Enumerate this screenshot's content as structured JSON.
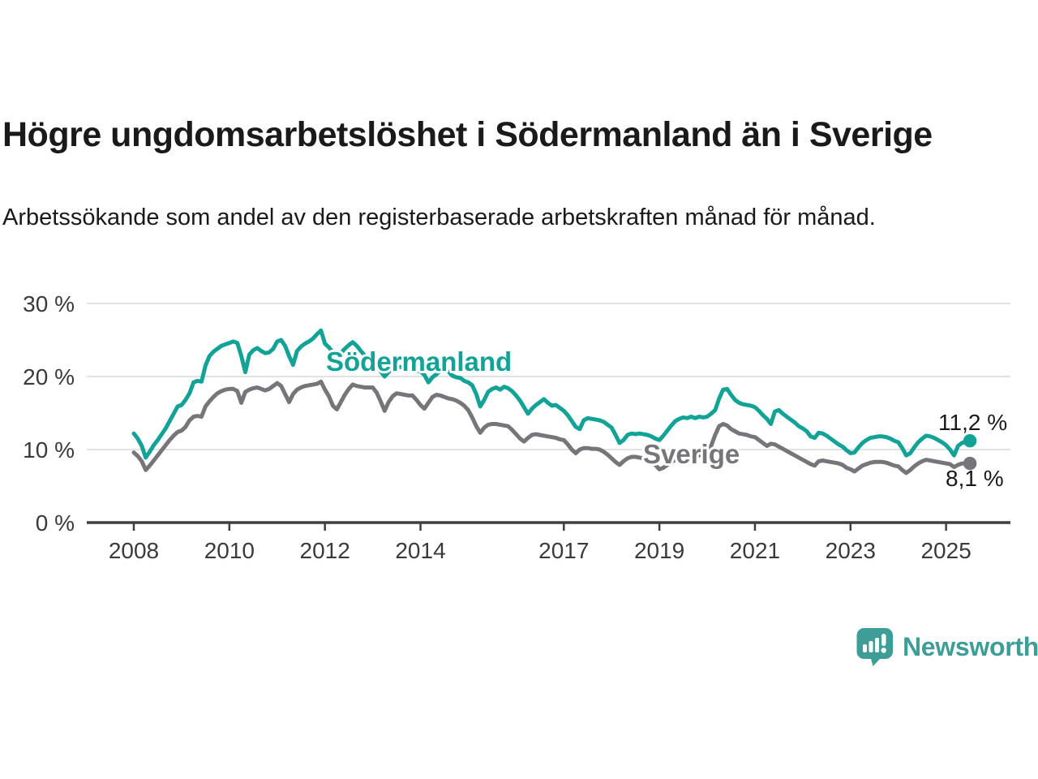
{
  "header": {
    "title": "Högre ungdomsarbetslöshet i Södermanland än i Sverige",
    "subtitle": "Arbetssökande som andel av den registerbaserade arbetskraften månad för månad."
  },
  "footer": {
    "brand": "Newsworthy",
    "brand_color": "#3f9d98",
    "logo_icon": "newsworthy-speech-bubble-bar-chart-icon"
  },
  "chart_data": {
    "type": "line",
    "title": "Högre ungdomsarbetslöshet i Södermanland än i Sverige",
    "xlabel": "",
    "ylabel": "",
    "grid": "horizontal",
    "legend_position": "inline-labels",
    "x_start_year": 2008,
    "points_per_year": 12,
    "xlim": [
      2008,
      2025.6
    ],
    "ylim": [
      0,
      30
    ],
    "y_ticks": [
      {
        "value": 0,
        "label": "0 %"
      },
      {
        "value": 10,
        "label": "10 %"
      },
      {
        "value": 20,
        "label": "20 %"
      },
      {
        "value": 30,
        "label": "30 %"
      }
    ],
    "x_ticks": [
      2008,
      2010,
      2012,
      2014,
      2017,
      2019,
      2021,
      2023,
      2025
    ],
    "colors": {
      "grid": "#d9d9d9",
      "axis": "#3f3f3f",
      "tick_text": "#3a3a3a",
      "value_label_text": "#1a1a1a"
    },
    "series": [
      {
        "name": "Sverige",
        "color": "#76767a",
        "end_label": "8,1 %",
        "values": [
          9.6,
          9.1,
          8.4,
          7.2,
          7.8,
          8.5,
          9.2,
          9.9,
          10.6,
          11.3,
          11.9,
          12.4,
          12.6,
          13.1,
          14.0,
          14.5,
          14.6,
          14.5,
          15.9,
          16.6,
          17.2,
          17.7,
          18.0,
          18.2,
          18.3,
          18.3,
          18.0,
          16.4,
          17.9,
          18.2,
          18.4,
          18.5,
          18.3,
          18.1,
          18.3,
          18.7,
          19.1,
          18.7,
          17.6,
          16.5,
          17.6,
          18.2,
          18.5,
          18.7,
          18.8,
          18.9,
          19.0,
          19.3,
          18.2,
          17.3,
          16.0,
          15.5,
          16.5,
          17.5,
          18.3,
          18.9,
          18.7,
          18.6,
          18.5,
          18.5,
          18.5,
          17.8,
          16.6,
          15.3,
          16.5,
          17.3,
          17.7,
          17.6,
          17.5,
          17.4,
          17.4,
          16.8,
          16.1,
          15.6,
          16.4,
          17.2,
          17.5,
          17.4,
          17.2,
          17.0,
          16.9,
          16.7,
          16.4,
          16.0,
          15.4,
          14.4,
          13.2,
          12.3,
          13.0,
          13.4,
          13.5,
          13.5,
          13.4,
          13.3,
          13.2,
          12.7,
          12.1,
          11.5,
          11.1,
          11.6,
          12.0,
          12.1,
          12.0,
          11.9,
          11.8,
          11.7,
          11.6,
          11.4,
          11.3,
          10.7,
          10.0,
          9.5,
          10.0,
          10.2,
          10.2,
          10.1,
          10.1,
          10.0,
          9.7,
          9.3,
          8.8,
          8.3,
          7.9,
          8.4,
          8.8,
          9.0,
          9.0,
          8.9,
          8.8,
          8.6,
          8.3,
          7.9,
          7.3,
          7.5,
          7.9,
          8.3,
          8.6,
          8.8,
          9.0,
          9.0,
          9.1,
          9.1,
          9.2,
          9.3,
          9.6,
          10.5,
          12.0,
          13.2,
          13.5,
          13.3,
          12.8,
          12.5,
          12.2,
          12.1,
          12.0,
          11.8,
          11.7,
          11.3,
          10.9,
          10.5,
          10.8,
          10.7,
          10.4,
          10.1,
          9.8,
          9.5,
          9.2,
          8.9,
          8.6,
          8.3,
          8.0,
          7.8,
          8.4,
          8.5,
          8.4,
          8.3,
          8.2,
          8.1,
          7.9,
          7.5,
          7.3,
          7.0,
          7.4,
          7.8,
          8.0,
          8.2,
          8.3,
          8.3,
          8.3,
          8.2,
          8.0,
          7.8,
          7.7,
          7.2,
          6.8,
          7.2,
          7.7,
          8.1,
          8.4,
          8.6,
          8.5,
          8.4,
          8.3,
          8.2,
          8.1,
          8.0,
          7.6,
          7.9,
          8.1,
          8.1,
          8.1
        ]
      },
      {
        "name": "Södermanland",
        "color": "#12a296",
        "end_label": "11,2 %",
        "values": [
          12.2,
          11.5,
          10.5,
          8.9,
          9.7,
          10.6,
          11.3,
          12.1,
          12.9,
          13.9,
          14.9,
          15.9,
          16.1,
          16.8,
          17.7,
          19.2,
          19.4,
          19.3,
          21.5,
          22.8,
          23.4,
          23.8,
          24.2,
          24.4,
          24.6,
          24.8,
          24.6,
          22.8,
          20.6,
          23.0,
          23.6,
          23.9,
          23.5,
          23.2,
          23.3,
          23.8,
          24.8,
          25.0,
          24.2,
          22.8,
          21.6,
          23.5,
          24.1,
          24.5,
          24.8,
          25.2,
          25.8,
          26.3,
          24.5,
          24.0,
          23.3,
          22.7,
          23.2,
          23.8,
          24.3,
          24.7,
          24.2,
          23.5,
          22.9,
          22.4,
          22.0,
          21.4,
          20.7,
          20.0,
          20.6,
          21.2,
          21.4,
          21.3,
          21.2,
          21.1,
          21.0,
          20.8,
          20.7,
          20.2,
          19.2,
          19.9,
          20.3,
          20.8,
          20.8,
          20.7,
          20.1,
          19.9,
          19.8,
          19.4,
          19.2,
          18.8,
          17.6,
          15.9,
          16.8,
          17.9,
          18.3,
          18.5,
          18.2,
          18.6,
          18.4,
          18.0,
          17.4,
          16.7,
          15.8,
          14.9,
          15.6,
          16.1,
          16.5,
          16.9,
          16.4,
          16.0,
          16.1,
          15.7,
          15.3,
          14.7,
          13.9,
          13.1,
          12.8,
          14.0,
          14.3,
          14.2,
          14.1,
          14.0,
          13.8,
          13.4,
          13.0,
          12.0,
          10.9,
          11.3,
          12.0,
          12.2,
          12.1,
          12.2,
          12.1,
          12.0,
          11.8,
          11.5,
          11.3,
          11.9,
          12.6,
          13.3,
          13.9,
          14.2,
          14.4,
          14.3,
          14.5,
          14.3,
          14.5,
          14.4,
          14.5,
          14.9,
          15.4,
          17.0,
          18.2,
          18.3,
          17.5,
          16.8,
          16.4,
          16.2,
          16.1,
          16.0,
          15.8,
          15.3,
          14.7,
          14.2,
          13.5,
          15.2,
          15.4,
          14.9,
          14.5,
          14.1,
          13.7,
          13.2,
          12.9,
          12.5,
          11.8,
          11.6,
          12.3,
          12.2,
          11.9,
          11.5,
          11.1,
          10.7,
          10.4,
          9.9,
          9.5,
          9.6,
          10.3,
          10.9,
          11.3,
          11.6,
          11.7,
          11.8,
          11.8,
          11.7,
          11.5,
          11.2,
          11.0,
          10.2,
          9.2,
          9.5,
          10.3,
          11.0,
          11.5,
          11.9,
          11.8,
          11.6,
          11.3,
          11.0,
          10.6,
          10.0,
          9.2,
          10.5,
          10.9,
          11.1,
          11.2
        ]
      }
    ]
  }
}
